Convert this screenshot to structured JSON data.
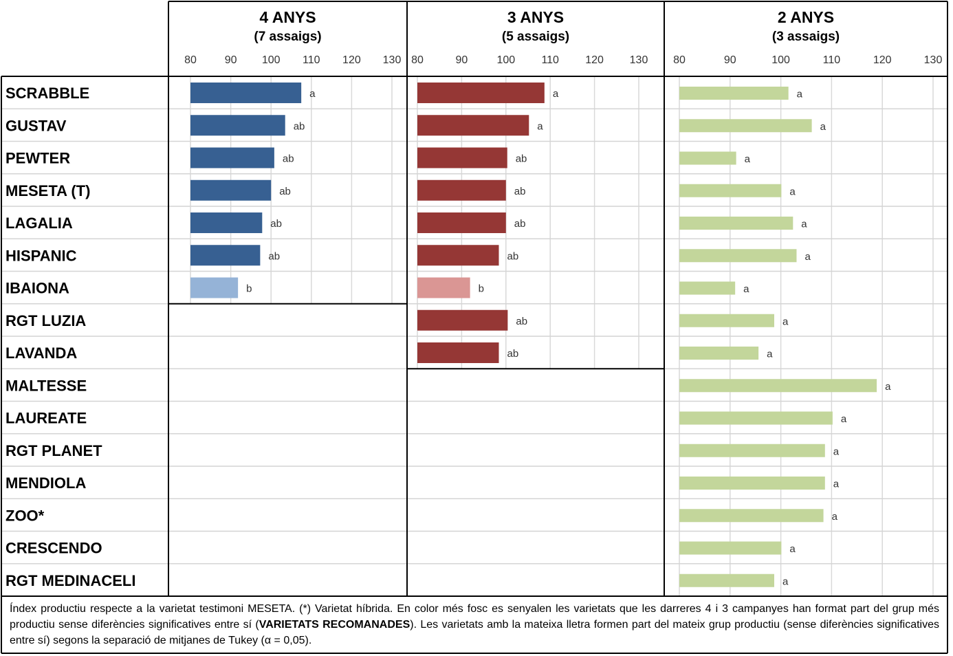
{
  "chart_data": {
    "type": "bar",
    "orientation": "horizontal",
    "categories": [
      "SCRABBLE",
      "GUSTAV",
      "PEWTER",
      "MESETA (T)",
      "LAGALIA",
      "HISPANIC",
      "IBAIONA",
      "RGT LUZIA",
      "LAVANDA",
      "MALTESSE",
      "LAUREATE",
      "RGT PLANET",
      "MENDIOLA",
      "ZOO*",
      "CRESCENDO",
      "RGT MEDINACELI"
    ],
    "xlim": [
      80,
      130
    ],
    "xticks": [
      "80",
      "90",
      "100",
      "110",
      "120",
      "130"
    ],
    "grid": true,
    "panels": [
      {
        "title": "4 ANYS",
        "subtitle": "(7 assaigs)",
        "color": "#376092",
        "light_color": "#95b3d7",
        "values": [
          107.5,
          103.5,
          100.8,
          100.0,
          97.8,
          97.3,
          91.8
        ],
        "letters": [
          "a",
          "ab",
          "ab",
          "ab",
          "ab",
          "ab",
          "b"
        ],
        "highlight": [
          true,
          true,
          true,
          true,
          true,
          true,
          false
        ]
      },
      {
        "title": "3 ANYS",
        "subtitle": "(5 assaigs)",
        "color": "#953735",
        "light_color": "#da9694",
        "values": [
          108.7,
          105.2,
          100.3,
          100.0,
          100.0,
          98.4,
          91.9,
          100.4,
          98.4
        ],
        "letters": [
          "a",
          "a",
          "ab",
          "ab",
          "ab",
          "ab",
          "b",
          "ab",
          "ab"
        ],
        "highlight": [
          true,
          true,
          true,
          true,
          true,
          true,
          false,
          true,
          true
        ]
      },
      {
        "title": "2 ANYS",
        "subtitle": "(3 assaigs)",
        "color": "#c3d69b",
        "light_color": "#c3d69b",
        "values": [
          101.5,
          106.1,
          91.2,
          100.1,
          102.4,
          103.1,
          91.0,
          98.7,
          95.6,
          118.9,
          110.2,
          108.7,
          108.7,
          108.4,
          100.1,
          98.7
        ],
        "letters": [
          "a",
          "a",
          "a",
          "a",
          "a",
          "a",
          "a",
          "a",
          "a",
          "a",
          "a",
          "a",
          "a",
          "a",
          "a",
          "a"
        ],
        "highlight": [
          false,
          false,
          false,
          false,
          false,
          false,
          false,
          false,
          false,
          false,
          false,
          false,
          false,
          false,
          false,
          false
        ]
      }
    ]
  },
  "footnote": {
    "part1": "Índex productiu respecte a la varietat testimoni MESETA. (*) Varietat híbrida. En color més fosc es senyalen les varietats que les darreres 4 i 3 campanyes han format part del grup més productiu sense diferències significatives entre sí (",
    "bold": "VARIETATS RECOMANADES",
    "part2": "). Les varietats amb la mateixa lletra formen part del mateix grup productiu (sense diferències significatives entre sí) segons la separació de mitjanes de Tukey (α = 0,05)."
  }
}
